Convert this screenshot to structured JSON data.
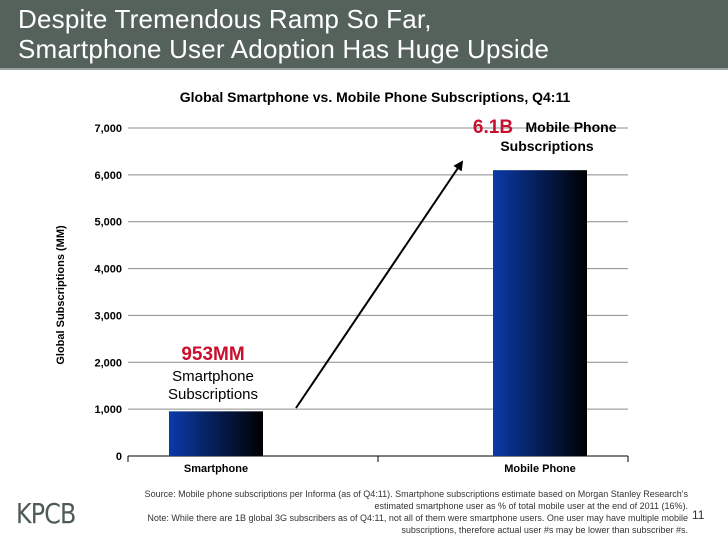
{
  "header": {
    "title_line1": "Despite Tremendous Ramp So Far,",
    "title_line2": "Smartphone User Adoption Has Huge Upside"
  },
  "colors": {
    "header_bg": "#55625c",
    "bar_gradient_start": "#0b3aa8",
    "bar_gradient_end": "#000000",
    "highlight_red": "#c8102e"
  },
  "chart_data": {
    "type": "bar",
    "title": "Global Smartphone vs. Mobile Phone Subscriptions, Q4:11",
    "ylabel": "Global Subscriptions (MM)",
    "xlabel": "",
    "categories": [
      "Smartphone",
      "Mobile Phone"
    ],
    "values": [
      953,
      6100
    ],
    "ylim": [
      0,
      7000
    ],
    "yticks": [
      0,
      1000,
      2000,
      3000,
      4000,
      5000,
      6000,
      7000
    ],
    "ytick_labels": [
      "0",
      "1,000",
      "2,000",
      "3,000",
      "4,000",
      "5,000",
      "6,000",
      "7,000"
    ],
    "grid": true,
    "annotations": [
      {
        "highlight": "953MM",
        "text_line1": "Smartphone",
        "text_line2": "Subscriptions"
      },
      {
        "highlight": "6.1B",
        "text_line1": "Mobile Phone",
        "text_line2": "Subscriptions"
      }
    ]
  },
  "footer": {
    "source_line": "Source: Mobile phone subscriptions per Informa (as of Q4:11). Smartphone subscriptions estimate based on Morgan Stanley Research's",
    "source_line2": "estimated smartphone user as % of total mobile user at the end of 2011 (16%).",
    "note_line": "Note: While there are 1B global 3G subscribers as of Q4:11, not all of them were smartphone users. One user may have multiple mobile",
    "note_line2": "subscriptions, therefore actual user #s may be lower than subscriber #s.",
    "page_number": "11",
    "logo": "KPCB"
  }
}
